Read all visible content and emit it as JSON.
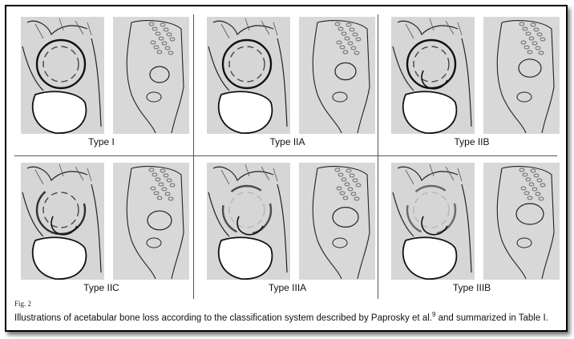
{
  "figure": {
    "number_label": "Fig. 2",
    "caption_before": "Illustrations of acetabular bone loss according to the classification system described by Paprosky et al.",
    "caption_ref": "9",
    "caption_after": " and summarized in Table I."
  },
  "panels": [
    {
      "label": "Type I"
    },
    {
      "label": "Type IIA"
    },
    {
      "label": "Type IIB"
    },
    {
      "label": "Type IIC"
    },
    {
      "label": "Type IIIA"
    },
    {
      "label": "Type IIIB"
    }
  ]
}
